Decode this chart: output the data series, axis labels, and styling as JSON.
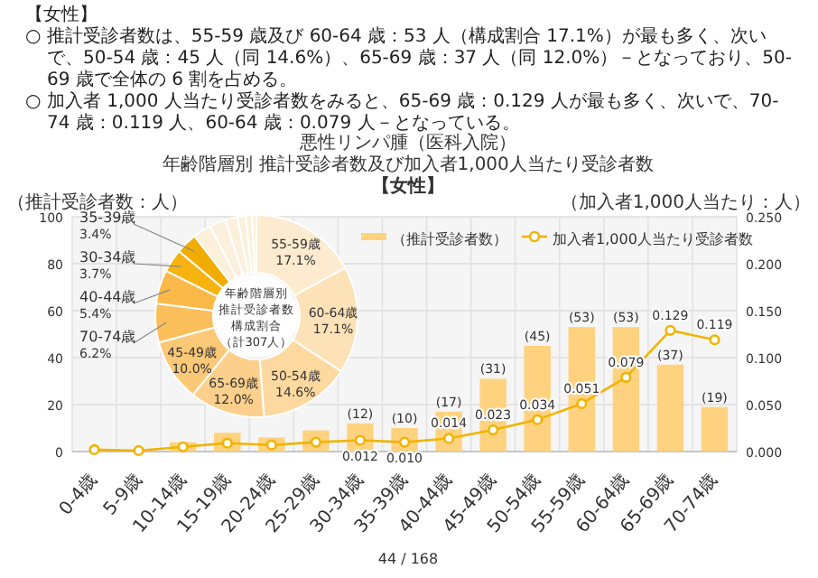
{
  "chart_data": [
    {
      "type": "bar",
      "title": "悪性リンパ腫（医科入院）",
      "subtitle": "年齢階層別 推計受診者数及び加入者1,000人当たり受診者数",
      "ylabel": "（推計受診者数：人）",
      "y2label": "（加入者1,000人当たり：人）",
      "annotations": [
        "【女性】",
        "○ 推計受診者数は、55-59 歳及び 60-64 歳：53 人（構成割合 17.1%）が最も多く、次いで、50-54 歳：45 人（同 14.6%）、65-69 歳：37 人（同 12.0%）－となっており、50-69 歳で全体の 6 割を占める。",
        "○ 加入者 1,000 人当たり受診者数をみると、65-69 歳：0.129 人が最も多く、次いで、70-74 歳：0.119 人、60-64 歳：0.079 人－となっている。",
        "【女性】",
        "44 / 168"
      ],
      "categories": [
        "0-4歳",
        "5-9歳",
        "10-14歳",
        "15-19歳",
        "20-24歳",
        "25-29歳",
        "30-34歳",
        "35-39歳",
        "40-44歳",
        "45-49歳",
        "50-54歳",
        "55-59歳",
        "60-64歳",
        "65-69歳",
        "70-74歳"
      ],
      "series": [
        {
          "name": "（推計受診者数）",
          "color": "#ffd280",
          "values": [
            null,
            null,
            4,
            8,
            6,
            9,
            12,
            10,
            17,
            31,
            45,
            53,
            53,
            37,
            19
          ],
          "value_labels": [
            null,
            null,
            null,
            null,
            null,
            null,
            "(12)",
            "(10)",
            "(17)",
            "(31)",
            "(45)",
            "(53)",
            "(53)",
            "(37)",
            "(19)"
          ]
        },
        {
          "name": "加入者1,000人当たり受診者数",
          "type": "line",
          "axis": "y2",
          "color": "#f0b400",
          "marker": "circle",
          "values": [
            0.002,
            0.001,
            0.005,
            0.009,
            0.007,
            0.01,
            0.012,
            0.01,
            0.014,
            0.023,
            0.034,
            0.051,
            0.079,
            0.129,
            0.119
          ],
          "value_labels": [
            null,
            null,
            null,
            null,
            null,
            null,
            "0.012",
            "0.010",
            "0.014",
            "0.023",
            "0.034",
            "0.051",
            "0.079",
            "0.129",
            "0.119"
          ]
        }
      ],
      "ylim": [
        0,
        100
      ],
      "yticks": [
        0,
        20,
        40,
        60,
        80,
        100
      ],
      "y2lim": [
        0,
        0.25
      ],
      "y2ticks": [
        {
          "value": 0,
          "label": "0.000"
        },
        {
          "value": 0.05,
          "label": "0.050"
        },
        {
          "value": 0.1,
          "label": "0.100"
        },
        {
          "value": 0.15,
          "label": "0.150"
        },
        {
          "value": 0.2,
          "label": "0.200"
        },
        {
          "value": 0.25,
          "label": "0.250"
        }
      ],
      "grid": true,
      "legend": "top right"
    },
    {
      "type": "donut",
      "annotations": [
        "年齢階層別",
        "推計受診者数",
        "構成割合",
        "（計307人）"
      ],
      "categories": [
        "55-59歳",
        "60-64歳",
        "50-54歳",
        "65-69歳",
        "45-49歳",
        "70-74歳",
        "40-44歳",
        "30-34歳",
        "35-39歳",
        null,
        null,
        null,
        null,
        null,
        null
      ],
      "values": [
        17.1,
        17.1,
        14.6,
        12.0,
        10.0,
        6.2,
        5.4,
        3.7,
        3.4,
        2.9,
        2.6,
        2.0,
        1.3,
        1.0,
        0.7
      ],
      "value_labels": [
        "17.1%",
        "17.1%",
        "14.6%",
        "12.0%",
        "10.0%",
        "6.2%",
        "5.4%",
        "3.7%",
        "3.4%",
        null,
        null,
        null,
        null,
        null,
        null
      ],
      "colors": [
        "#fdebd0",
        "#fde2b8",
        "#fdd9a0",
        "#fcd08c",
        "#fbc877",
        "#fbbf5c",
        "#fab948",
        "#f7b310",
        "#f2ac00",
        "#fbf0dc",
        "#fbf0dc",
        "#fbf0dc",
        "#fbf0dc",
        "#fbf0dc",
        "#fbf0dc"
      ]
    }
  ]
}
